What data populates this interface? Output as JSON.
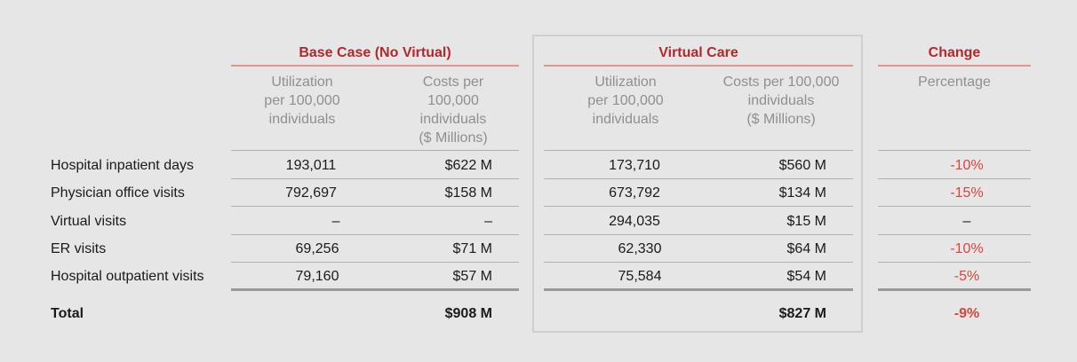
{
  "groups": {
    "base": {
      "title": "Base Case (No Virtual)",
      "col1": [
        "Utilization",
        "per 100,000",
        "individuals"
      ],
      "col2": [
        "Costs per",
        "100,000",
        "individuals",
        "($ Millions)"
      ]
    },
    "virtual": {
      "title": "Virtual Care",
      "col1": [
        "Utilization",
        "per 100,000",
        "individuals"
      ],
      "col2": [
        "Costs per 100,000",
        "individuals",
        "($ Millions)"
      ]
    },
    "change": {
      "title": "Change",
      "col1": [
        "Percentage"
      ]
    }
  },
  "rows": [
    {
      "label": "Hospital inpatient days",
      "base_util": "193,011",
      "base_cost": "$622 M",
      "vc_util": "173,710",
      "vc_cost": "$560 M",
      "change": "-10%"
    },
    {
      "label": "Physician office visits",
      "base_util": "792,697",
      "base_cost": "$158 M",
      "vc_util": "673,792",
      "vc_cost": "$134 M",
      "change": "-15%"
    },
    {
      "label": "Virtual visits",
      "base_util": "–",
      "base_cost": "–",
      "vc_util": "294,035",
      "vc_cost": "$15 M",
      "change": "–"
    },
    {
      "label": "ER visits",
      "base_util": "69,256",
      "base_cost": "$71 M",
      "vc_util": "62,330",
      "vc_cost": "$64 M",
      "change": "-10%"
    },
    {
      "label": "Hospital outpatient visits",
      "base_util": "79,160",
      "base_cost": "$57 M",
      "vc_util": "75,584",
      "vc_cost": "$54 M",
      "change": "-5%"
    }
  ],
  "total": {
    "label": "Total",
    "base_cost": "$908 M",
    "vc_cost": "$827 M",
    "change": "-9%"
  },
  "colors": {
    "title_red": "#b3282d",
    "change_red": "#d9453d",
    "header_gray": "#8f8f8f",
    "background": "#e6e6e6"
  }
}
